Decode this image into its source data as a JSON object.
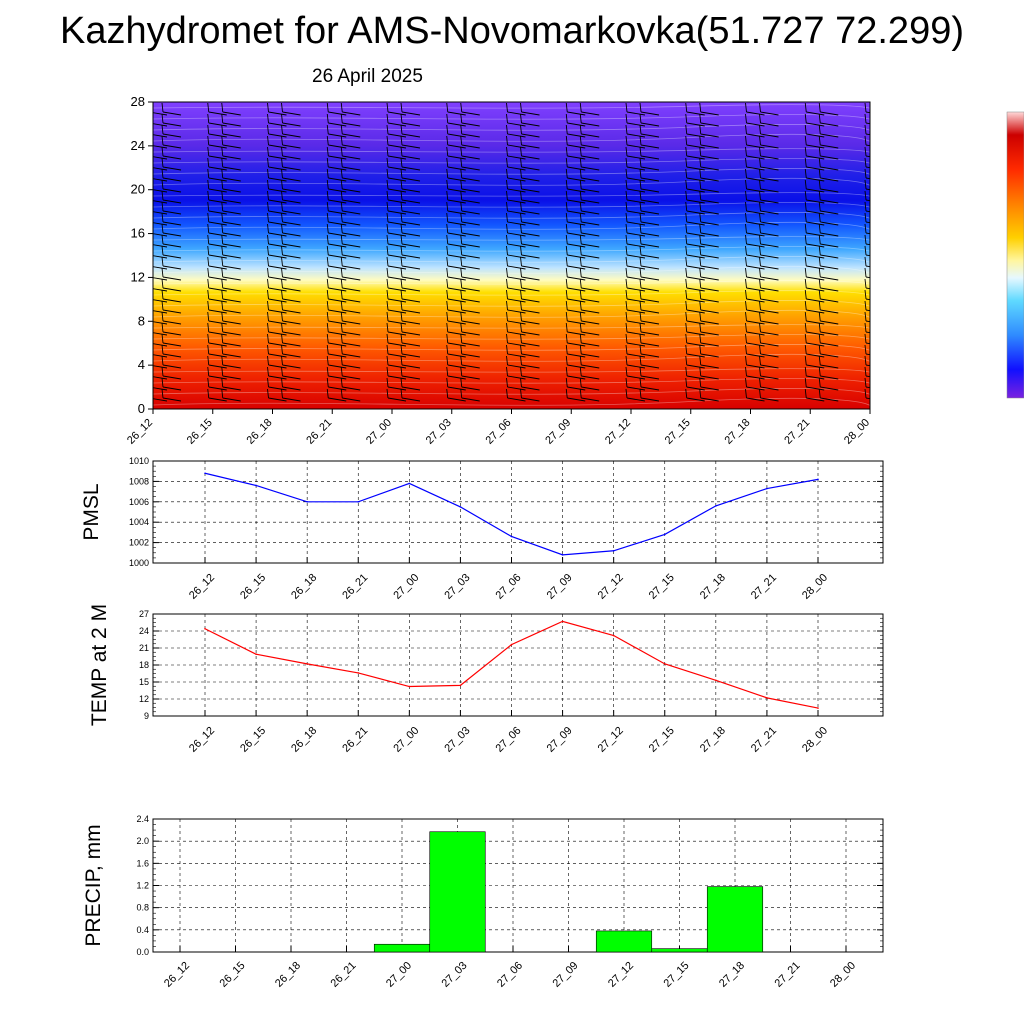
{
  "header": {
    "title": "Kazhydromet for AMS-Novomarkovka(51.727 72.299)",
    "subtitle": "26 April 2025"
  },
  "colors": {
    "pmsl_line": "#0000ff",
    "temp_line": "#ff0000",
    "precip_bar": "#00ff00"
  },
  "chart_data": [
    {
      "type": "heatmap",
      "title": "",
      "categories": [
        "26_12",
        "26_15",
        "26_18",
        "26_21",
        "27_00",
        "27_03",
        "27_06",
        "27_09",
        "27_12",
        "27_15",
        "27_18",
        "27_21",
        "28_00"
      ],
      "y_ticks": [
        "0",
        "4",
        "8",
        "12",
        "16",
        "20",
        "24",
        "28"
      ],
      "ylim": [
        0,
        28
      ],
      "colormap": "cold purple at top to hot red at bottom with wind barbs",
      "colorbar": "right side, no labels"
    },
    {
      "type": "line",
      "ylabel": "PMSL",
      "categories": [
        "26_12",
        "26_15",
        "26_18",
        "26_21",
        "27_00",
        "27_03",
        "27_06",
        "27_09",
        "27_12",
        "27_15",
        "27_18",
        "27_21",
        "28_00"
      ],
      "y_ticks": [
        "1000",
        "1002",
        "1004",
        "1006",
        "1008",
        "1010"
      ],
      "ylim": [
        1000,
        1010
      ],
      "values": [
        1008.8,
        1007.6,
        1006.0,
        1006.0,
        1007.8,
        1005.5,
        1002.6,
        1000.8,
        1001.2,
        1002.8,
        1005.6,
        1007.3,
        1008.2
      ],
      "grid": true
    },
    {
      "type": "line",
      "ylabel": "TEMP at 2 M",
      "categories": [
        "26_12",
        "26_15",
        "26_18",
        "26_21",
        "27_00",
        "27_03",
        "27_06",
        "27_09",
        "27_12",
        "27_15",
        "27_18",
        "27_21",
        "28_00"
      ],
      "y_ticks": [
        "9",
        "12",
        "15",
        "18",
        "21",
        "24",
        "27"
      ],
      "ylim": [
        9,
        27
      ],
      "values": [
        24.4,
        19.9,
        18.2,
        16.6,
        14.2,
        14.4,
        21.6,
        25.7,
        23.2,
        18.2,
        15.3,
        12.2,
        10.4
      ],
      "grid": true
    },
    {
      "type": "bar",
      "ylabel": "PRECIP, mm",
      "categories": [
        "26_12",
        "26_15",
        "26_18",
        "26_21",
        "27_00",
        "27_03",
        "27_06",
        "27_09",
        "27_12",
        "27_15",
        "27_18",
        "27_21",
        "28_00"
      ],
      "y_ticks": [
        "0.0",
        "0.4",
        "0.8",
        "1.2",
        "1.6",
        "2.0",
        "2.4"
      ],
      "ylim": [
        0,
        2.4
      ],
      "values": [
        0,
        0,
        0,
        0,
        0.14,
        2.17,
        0,
        0,
        0.38,
        0.06,
        1.18,
        0,
        0
      ],
      "grid": true
    }
  ]
}
